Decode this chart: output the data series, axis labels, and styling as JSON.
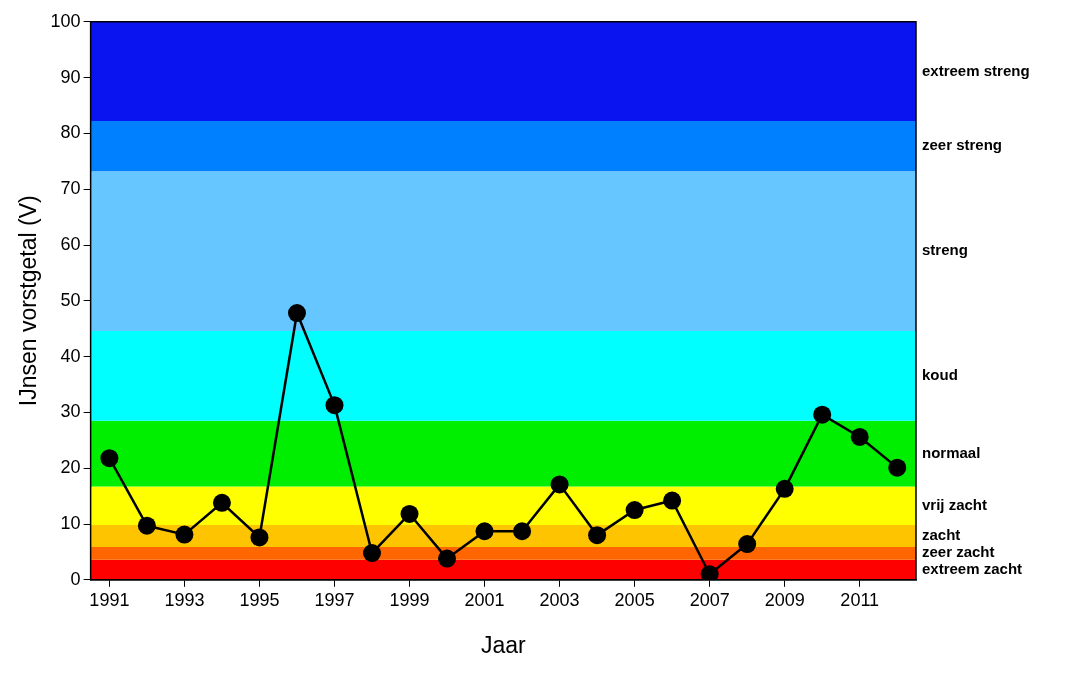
{
  "chart_data": {
    "type": "line",
    "xlabel": "Jaar",
    "ylabel": "IJnsen vorstgetal (V)",
    "x": [
      1991,
      1992,
      1993,
      1994,
      1995,
      1996,
      1997,
      1998,
      1999,
      2000,
      2001,
      2002,
      2003,
      2004,
      2005,
      2006,
      2007,
      2008,
      2009,
      2010,
      2011,
      2012
    ],
    "series": [
      {
        "color": "#000000",
        "values": [
          21.8,
          9.7,
          8.1,
          13.8,
          7.6,
          47.8,
          31.3,
          4.8,
          11.8,
          3.8,
          8.7,
          8.7,
          17.1,
          8.0,
          12.5,
          14.2,
          1.0,
          6.4,
          16.3,
          29.6,
          25.6,
          20.1
        ]
      }
    ],
    "xlim": [
      1990.5,
      2012.5
    ],
    "xticks": [
      1991,
      1993,
      1995,
      1997,
      1999,
      2001,
      2003,
      2005,
      2007,
      2009,
      2011
    ],
    "ylim": [
      0,
      100
    ],
    "yticks": [
      0,
      10,
      20,
      30,
      40,
      50,
      60,
      70,
      80,
      90,
      100
    ],
    "marker": "circle",
    "line_style": "solid",
    "grid": false,
    "legend": false,
    "bands": [
      {
        "axis": "y",
        "from": 0,
        "to": 3.6,
        "label": "extreem zacht",
        "color": "#ff0000"
      },
      {
        "axis": "y",
        "from": 3.6,
        "to": 5.9,
        "label": "zeer zacht",
        "color": "#ff6600"
      },
      {
        "axis": "y",
        "from": 5.9,
        "to": 9.8,
        "label": "zacht",
        "color": "#ffc400"
      },
      {
        "axis": "y",
        "from": 9.8,
        "to": 16.7,
        "label": "vrij zacht",
        "color": "#ffff00"
      },
      {
        "axis": "y",
        "from": 16.7,
        "to": 28.5,
        "label": "normaal",
        "color": "#00ee00"
      },
      {
        "axis": "y",
        "from": 28.5,
        "to": 44.6,
        "label": "koud",
        "color": "#00ffff"
      },
      {
        "axis": "y",
        "from": 44.6,
        "to": 73.2,
        "label": "streng",
        "color": "#66c6ff"
      },
      {
        "axis": "y",
        "from": 73.2,
        "to": 82.2,
        "label": "zeer streng",
        "color": "#0080ff"
      },
      {
        "axis": "y",
        "from": 82.2,
        "to": 100,
        "label": "extreem streng",
        "color": "#0a14f0"
      }
    ]
  }
}
